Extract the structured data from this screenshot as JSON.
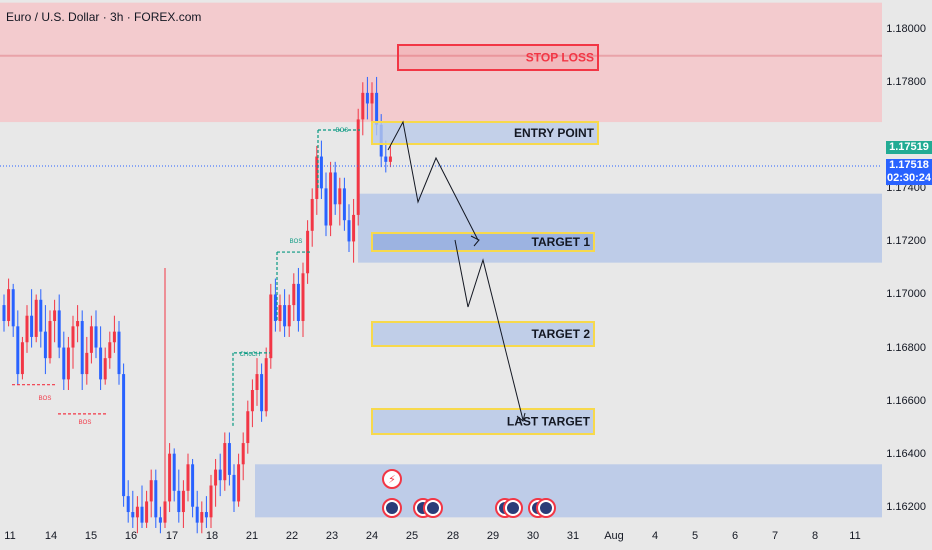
{
  "title": "Euro / U.S. Dollar · 3h · FOREX.com",
  "current_price": {
    "ask": "1.17519",
    "bid": "1.17518",
    "countdown": "02:30:24",
    "ask_color": "#22ab94",
    "bid_color": "#2962ff"
  },
  "colors": {
    "up": "#f23645",
    "down": "#2962ff",
    "stop_zone": "#f4c6c9",
    "target_zone": "#b9c9e8",
    "yellow_border": "#f7d94c",
    "red_border": "#f23645"
  },
  "chart_data": {
    "type": "candlestick",
    "title": "Euro / U.S. Dollar · 3h · FOREX.com",
    "ylim": [
      1.1615,
      1.1811
    ],
    "y_ticks": [
      "1.18000",
      "1.17800",
      "1.17400",
      "1.17200",
      "1.17000",
      "1.16800",
      "1.16600",
      "1.16400",
      "1.16200"
    ],
    "x_ticks": [
      "11",
      "14",
      "15",
      "16",
      "17",
      "18",
      "21",
      "22",
      "23",
      "24",
      "25",
      "28",
      "29",
      "30",
      "31",
      "Aug",
      "4",
      "5",
      "6",
      "7",
      "8",
      "11"
    ],
    "annotations": {
      "stop_loss": "STOP LOSS",
      "entry_point": "ENTRY POINT",
      "target_1": "TARGET 1",
      "target_2": "TARGET 2",
      "last_target": "LAST TARGET"
    },
    "structure_labels": [
      "BOS",
      "BOS",
      "CHoCH",
      "BOS",
      "BOS"
    ],
    "levels": {
      "stop_loss": 1.1797,
      "entry_point": 1.1766,
      "target_1": 1.1722,
      "target_2": 1.169,
      "last_target": 1.1654,
      "stop_zone": [
        1.1765,
        1.181
      ],
      "target_zone_upper": [
        1.1712,
        1.1738
      ],
      "target_zone_lower": [
        1.1616,
        1.1636
      ]
    },
    "candles": [
      [
        1.1696,
        1.17,
        1.1686,
        1.169
      ],
      [
        1.169,
        1.1706,
        1.1688,
        1.1702
      ],
      [
        1.1702,
        1.1704,
        1.1684,
        1.1688
      ],
      [
        1.1688,
        1.1694,
        1.1666,
        1.167
      ],
      [
        1.167,
        1.1684,
        1.1668,
        1.1682
      ],
      [
        1.1682,
        1.1696,
        1.1678,
        1.1692
      ],
      [
        1.1692,
        1.1702,
        1.168,
        1.1684
      ],
      [
        1.1684,
        1.17,
        1.1682,
        1.1698
      ],
      [
        1.1698,
        1.1702,
        1.168,
        1.1686
      ],
      [
        1.1686,
        1.1696,
        1.167,
        1.1676
      ],
      [
        1.1676,
        1.1694,
        1.1674,
        1.169
      ],
      [
        1.169,
        1.1698,
        1.1682,
        1.1694
      ],
      [
        1.1694,
        1.17,
        1.1676,
        1.168
      ],
      [
        1.168,
        1.1686,
        1.1664,
        1.1668
      ],
      [
        1.1668,
        1.1684,
        1.1664,
        1.168
      ],
      [
        1.168,
        1.1692,
        1.1672,
        1.1688
      ],
      [
        1.1688,
        1.1696,
        1.1682,
        1.169
      ],
      [
        1.169,
        1.1694,
        1.1664,
        1.167
      ],
      [
        1.167,
        1.1684,
        1.1666,
        1.1678
      ],
      [
        1.1678,
        1.1692,
        1.1674,
        1.1688
      ],
      [
        1.1688,
        1.1694,
        1.1676,
        1.168
      ],
      [
        1.168,
        1.1688,
        1.1664,
        1.1668
      ],
      [
        1.1668,
        1.168,
        1.1666,
        1.1676
      ],
      [
        1.1676,
        1.1686,
        1.1672,
        1.1682
      ],
      [
        1.1682,
        1.1692,
        1.1678,
        1.1686
      ],
      [
        1.1686,
        1.169,
        1.1666,
        1.167
      ],
      [
        1.167,
        1.1674,
        1.162,
        1.1624
      ],
      [
        1.1624,
        1.163,
        1.1614,
        1.1618
      ],
      [
        1.1618,
        1.1626,
        1.1612,
        1.1616
      ],
      [
        1.1616,
        1.1624,
        1.161,
        1.162
      ],
      [
        1.162,
        1.1628,
        1.1612,
        1.1614
      ],
      [
        1.1614,
        1.1626,
        1.1612,
        1.1622
      ],
      [
        1.1622,
        1.1634,
        1.1616,
        1.163
      ],
      [
        1.163,
        1.1634,
        1.1612,
        1.1616
      ],
      [
        1.1616,
        1.162,
        1.161,
        1.1614
      ],
      [
        1.1614,
        1.171,
        1.1612,
        1.1622
      ],
      [
        1.1622,
        1.1644,
        1.1618,
        1.164
      ],
      [
        1.164,
        1.1642,
        1.1622,
        1.1626
      ],
      [
        1.1626,
        1.1634,
        1.1614,
        1.1618
      ],
      [
        1.1618,
        1.163,
        1.1612,
        1.1626
      ],
      [
        1.1626,
        1.164,
        1.1622,
        1.1636
      ],
      [
        1.1636,
        1.1638,
        1.1616,
        1.162
      ],
      [
        1.162,
        1.1626,
        1.161,
        1.1614
      ],
      [
        1.1614,
        1.1622,
        1.161,
        1.1618
      ],
      [
        1.1618,
        1.1624,
        1.1612,
        1.1616
      ],
      [
        1.1616,
        1.1632,
        1.1612,
        1.1628
      ],
      [
        1.1628,
        1.1638,
        1.162,
        1.1634
      ],
      [
        1.1634,
        1.164,
        1.1624,
        1.163
      ],
      [
        1.163,
        1.1648,
        1.1626,
        1.1644
      ],
      [
        1.1644,
        1.1648,
        1.1628,
        1.1632
      ],
      [
        1.1632,
        1.1636,
        1.1618,
        1.1622
      ],
      [
        1.1622,
        1.164,
        1.162,
        1.1636
      ],
      [
        1.1636,
        1.1648,
        1.163,
        1.1644
      ],
      [
        1.1644,
        1.166,
        1.164,
        1.1656
      ],
      [
        1.1656,
        1.1668,
        1.165,
        1.1664
      ],
      [
        1.1664,
        1.1676,
        1.1658,
        1.167
      ],
      [
        1.167,
        1.1674,
        1.1652,
        1.1656
      ],
      [
        1.1656,
        1.168,
        1.1654,
        1.1676
      ],
      [
        1.1676,
        1.1704,
        1.1672,
        1.17
      ],
      [
        1.17,
        1.1706,
        1.1686,
        1.169
      ],
      [
        1.169,
        1.17,
        1.1686,
        1.1696
      ],
      [
        1.1696,
        1.1702,
        1.1684,
        1.1688
      ],
      [
        1.1688,
        1.17,
        1.1684,
        1.1696
      ],
      [
        1.1696,
        1.1708,
        1.169,
        1.1704
      ],
      [
        1.1704,
        1.171,
        1.1686,
        1.169
      ],
      [
        1.169,
        1.1712,
        1.1684,
        1.1708
      ],
      [
        1.1708,
        1.1728,
        1.1704,
        1.1724
      ],
      [
        1.1724,
        1.174,
        1.1718,
        1.1736
      ],
      [
        1.1736,
        1.1756,
        1.173,
        1.1752
      ],
      [
        1.1752,
        1.1758,
        1.1736,
        1.174
      ],
      [
        1.174,
        1.1746,
        1.1722,
        1.1726
      ],
      [
        1.1726,
        1.175,
        1.1722,
        1.1746
      ],
      [
        1.1746,
        1.175,
        1.173,
        1.1734
      ],
      [
        1.1734,
        1.1744,
        1.1726,
        1.174
      ],
      [
        1.174,
        1.1744,
        1.1724,
        1.1728
      ],
      [
        1.1728,
        1.1734,
        1.1716,
        1.172
      ],
      [
        1.172,
        1.1736,
        1.1712,
        1.173
      ],
      [
        1.173,
        1.177,
        1.1726,
        1.1766
      ],
      [
        1.1766,
        1.178,
        1.176,
        1.1776
      ],
      [
        1.1776,
        1.1782,
        1.1766,
        1.1772
      ],
      [
        1.1772,
        1.178,
        1.1764,
        1.1776
      ],
      [
        1.1776,
        1.1782,
        1.176,
        1.1764
      ],
      [
        1.1764,
        1.1768,
        1.1748,
        1.1752
      ],
      [
        1.1752,
        1.1758,
        1.1746,
        1.175
      ],
      [
        1.175,
        1.1756,
        1.1748,
        1.1752
      ]
    ]
  }
}
